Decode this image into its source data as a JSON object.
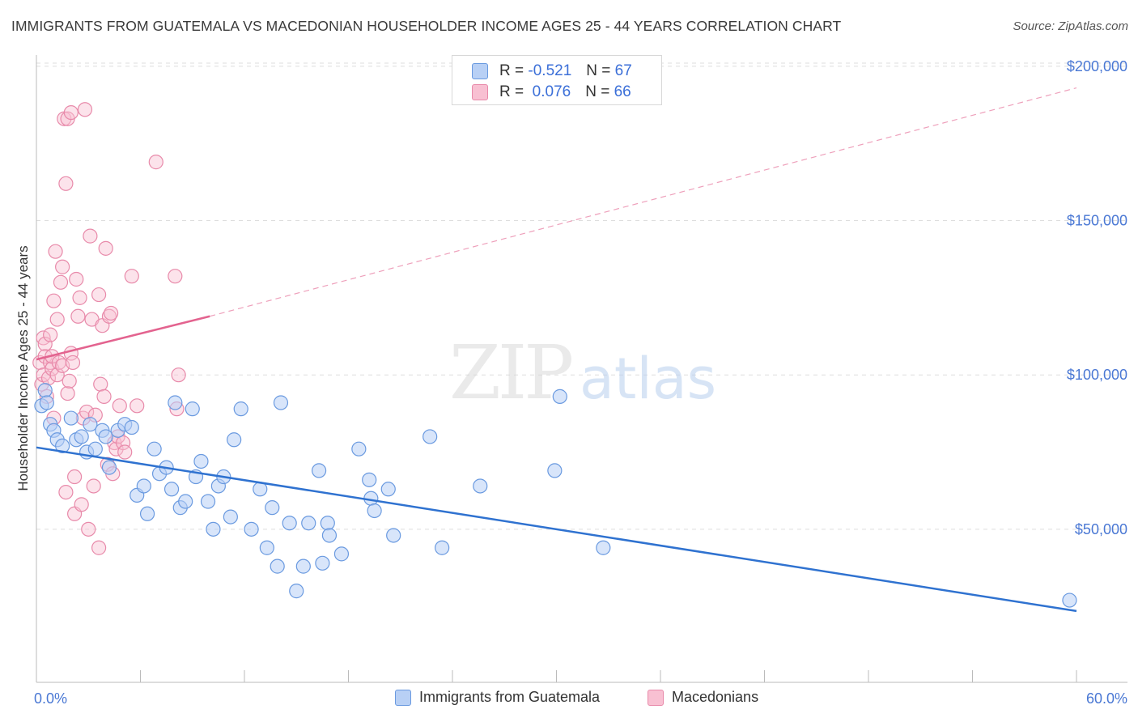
{
  "title": "IMMIGRANTS FROM GUATEMALA VS MACEDONIAN HOUSEHOLDER INCOME AGES 25 - 44 YEARS CORRELATION CHART",
  "source": "Source: ZipAtlas.com",
  "watermark": {
    "zip": "ZIP",
    "atlas": "atlas"
  },
  "colors": {
    "blue": "#3a7bd5",
    "blue_fill": "#b8d0f5",
    "pink": "#e8709a",
    "pink_fill": "#f8c0d2",
    "axis_label": "#4a78d4"
  },
  "correlation_legend": {
    "r_label": "R =",
    "n_label": "N =",
    "rows": [
      {
        "r": "-0.521",
        "n": "67"
      },
      {
        "r": "0.076",
        "n": "66"
      }
    ]
  },
  "chart_data": {
    "type": "scatter",
    "title": "IMMIGRANTS FROM GUATEMALA VS MACEDONIAN HOUSEHOLDER INCOME AGES 25 - 44 YEARS CORRELATION CHART",
    "xlabel": "",
    "ylabel": "Householder Income Ages 25 - 44 years",
    "xlim": [
      0,
      60
    ],
    "ylim": [
      0,
      210000
    ],
    "x_tick_labels": [
      "0.0%",
      "60.0%"
    ],
    "y_ticks": [
      50000,
      100000,
      150000,
      200000
    ],
    "y_tick_labels": [
      "$50,000",
      "$100,000",
      "$150,000",
      "$200,000"
    ],
    "grid": true,
    "legend_position": "bottom",
    "series": [
      {
        "name": "Immigrants from Guatemala",
        "color": "#3a7bd5",
        "trend": {
          "x0": 0,
          "y0": 76500,
          "x1": 60,
          "y1": 23500,
          "dashed_from": null
        },
        "points": [
          [
            0.3,
            90000
          ],
          [
            0.5,
            95000
          ],
          [
            0.6,
            91000
          ],
          [
            0.8,
            84000
          ],
          [
            1.0,
            82000
          ],
          [
            1.2,
            79000
          ],
          [
            1.5,
            77000
          ],
          [
            2.0,
            86000
          ],
          [
            2.3,
            79000
          ],
          [
            2.6,
            80000
          ],
          [
            2.9,
            75000
          ],
          [
            3.1,
            84000
          ],
          [
            3.4,
            76000
          ],
          [
            3.8,
            82000
          ],
          [
            4.0,
            80000
          ],
          [
            4.2,
            70000
          ],
          [
            4.7,
            82000
          ],
          [
            5.1,
            84000
          ],
          [
            5.5,
            83000
          ],
          [
            5.8,
            61000
          ],
          [
            6.2,
            64000
          ],
          [
            6.4,
            55000
          ],
          [
            6.8,
            76000
          ],
          [
            7.1,
            68000
          ],
          [
            7.5,
            70000
          ],
          [
            7.8,
            63000
          ],
          [
            8.0,
            91000
          ],
          [
            8.3,
            57000
          ],
          [
            8.6,
            59000
          ],
          [
            9.0,
            89000
          ],
          [
            9.2,
            67000
          ],
          [
            9.5,
            72000
          ],
          [
            9.9,
            59000
          ],
          [
            10.2,
            50000
          ],
          [
            10.5,
            64000
          ],
          [
            10.8,
            67000
          ],
          [
            11.2,
            54000
          ],
          [
            11.4,
            79000
          ],
          [
            11.8,
            89000
          ],
          [
            12.4,
            50000
          ],
          [
            12.9,
            63000
          ],
          [
            13.3,
            44000
          ],
          [
            13.6,
            57000
          ],
          [
            13.9,
            38000
          ],
          [
            14.1,
            91000
          ],
          [
            14.6,
            52000
          ],
          [
            15.0,
            30000
          ],
          [
            15.4,
            38000
          ],
          [
            15.7,
            52000
          ],
          [
            16.3,
            69000
          ],
          [
            16.5,
            39000
          ],
          [
            16.8,
            52000
          ],
          [
            16.9,
            48000
          ],
          [
            17.6,
            42000
          ],
          [
            18.6,
            76000
          ],
          [
            19.2,
            66000
          ],
          [
            19.3,
            60000
          ],
          [
            19.5,
            56000
          ],
          [
            20.3,
            63000
          ],
          [
            20.6,
            48000
          ],
          [
            22.7,
            80000
          ],
          [
            23.4,
            44000
          ],
          [
            25.6,
            64000
          ],
          [
            29.9,
            69000
          ],
          [
            30.2,
            93000
          ],
          [
            32.7,
            44000
          ],
          [
            59.6,
            27000
          ]
        ]
      },
      {
        "name": "Macedonians",
        "color": "#e8709a",
        "trend": {
          "x0": 0,
          "y0": 105000,
          "x1": 10,
          "y1": 119000,
          "dashed_to_x": 60,
          "dashed_to_y": 193000
        },
        "points": [
          [
            0.2,
            104000
          ],
          [
            0.3,
            97000
          ],
          [
            0.4,
            112000
          ],
          [
            0.4,
            100000
          ],
          [
            0.5,
            110000
          ],
          [
            0.5,
            106000
          ],
          [
            0.6,
            93000
          ],
          [
            0.7,
            99000
          ],
          [
            0.8,
            113000
          ],
          [
            0.8,
            104000
          ],
          [
            0.9,
            102000
          ],
          [
            0.9,
            106000
          ],
          [
            1.0,
            124000
          ],
          [
            1.0,
            86000
          ],
          [
            1.1,
            140000
          ],
          [
            1.2,
            118000
          ],
          [
            1.2,
            100000
          ],
          [
            1.3,
            104000
          ],
          [
            1.4,
            130000
          ],
          [
            1.5,
            135000
          ],
          [
            1.5,
            103000
          ],
          [
            1.6,
            183000
          ],
          [
            1.7,
            162000
          ],
          [
            1.7,
            62000
          ],
          [
            1.8,
            183000
          ],
          [
            1.8,
            94000
          ],
          [
            1.9,
            98000
          ],
          [
            2.0,
            185000
          ],
          [
            2.0,
            107000
          ],
          [
            2.1,
            104000
          ],
          [
            2.2,
            67000
          ],
          [
            2.2,
            55000
          ],
          [
            2.3,
            131000
          ],
          [
            2.4,
            119000
          ],
          [
            2.5,
            125000
          ],
          [
            2.6,
            58000
          ],
          [
            2.7,
            86000
          ],
          [
            2.8,
            186000
          ],
          [
            2.9,
            88000
          ],
          [
            3.0,
            50000
          ],
          [
            3.1,
            145000
          ],
          [
            3.2,
            118000
          ],
          [
            3.3,
            64000
          ],
          [
            3.4,
            87000
          ],
          [
            3.6,
            44000
          ],
          [
            3.6,
            126000
          ],
          [
            3.7,
            97000
          ],
          [
            3.8,
            116000
          ],
          [
            3.9,
            93000
          ],
          [
            4.0,
            141000
          ],
          [
            4.1,
            71000
          ],
          [
            4.2,
            119000
          ],
          [
            4.3,
            120000
          ],
          [
            4.4,
            68000
          ],
          [
            4.5,
            78000
          ],
          [
            4.6,
            76000
          ],
          [
            4.7,
            80000
          ],
          [
            4.8,
            90000
          ],
          [
            5.0,
            78000
          ],
          [
            5.1,
            75000
          ],
          [
            5.5,
            132000
          ],
          [
            5.8,
            90000
          ],
          [
            6.9,
            169000
          ],
          [
            8.0,
            132000
          ],
          [
            8.1,
            89000
          ],
          [
            8.2,
            100000
          ]
        ]
      }
    ]
  },
  "bottom_legend": [
    {
      "label": "Immigrants from Guatemala"
    },
    {
      "label": "Macedonians"
    }
  ]
}
